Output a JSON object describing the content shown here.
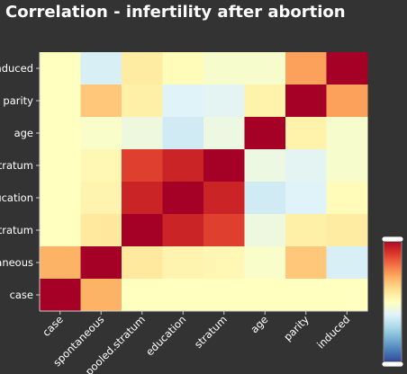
{
  "chart_data": {
    "type": "heatmap",
    "title": "Correlation - infertility after abortion",
    "x_labels": [
      "case",
      "spontaneous",
      "pooled.stratum",
      "education",
      "stratum",
      "age",
      "parity",
      "induced"
    ],
    "y_labels": [
      "induced",
      "parity",
      "age",
      "stratum",
      "education",
      "pooled.stratum",
      "spontaneous",
      "case"
    ],
    "values": [
      [
        0.0,
        -0.23,
        0.12,
        0.02,
        -0.05,
        -0.05,
        0.44,
        1.0
      ],
      [
        0.0,
        0.3,
        0.1,
        -0.2,
        -0.18,
        0.08,
        1.0,
        0.44
      ],
      [
        0.0,
        -0.04,
        -0.11,
        -0.26,
        -0.12,
        1.0,
        0.08,
        -0.05
      ],
      [
        0.0,
        0.05,
        0.75,
        0.85,
        1.0,
        -0.12,
        -0.18,
        -0.05
      ],
      [
        0.0,
        0.07,
        0.85,
        1.0,
        0.85,
        -0.26,
        -0.2,
        0.02
      ],
      [
        0.0,
        0.14,
        1.0,
        0.85,
        0.75,
        -0.11,
        0.1,
        0.12
      ],
      [
        0.38,
        1.0,
        0.14,
        0.07,
        0.05,
        -0.04,
        0.3,
        -0.23
      ],
      [
        1.0,
        0.38,
        0.0,
        0.0,
        0.0,
        0.0,
        0.0,
        0.0
      ]
    ],
    "color_scale": {
      "min": -1,
      "max": 1,
      "stops": [
        "#313695",
        "#4575b4",
        "#74add1",
        "#abd9e9",
        "#e0f3f8",
        "#ffffbf",
        "#fee090",
        "#fdae61",
        "#f46d43",
        "#d73027",
        "#a50026"
      ]
    },
    "legend": "right"
  }
}
